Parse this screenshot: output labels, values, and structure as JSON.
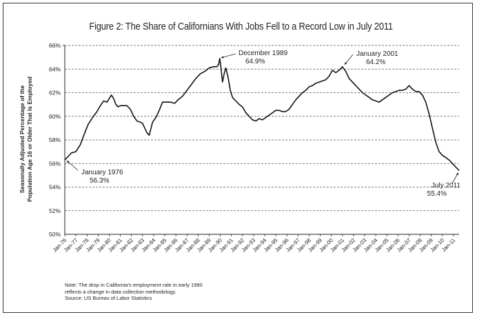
{
  "chart_data": {
    "type": "line",
    "title": "Figure 2: The Share of Californians With Jobs Fell to a Record Low in July 2011",
    "ylabel": [
      "Seasonally Adjusted Percentage of the",
      "Population Age 16 or Older That Is Employed"
    ],
    "xlabel": "",
    "ylim": [
      50,
      66
    ],
    "x_range": [
      1976.0,
      2011.5
    ],
    "y_ticks": [
      "50%",
      "52%",
      "54%",
      "56%",
      "58%",
      "60%",
      "62%",
      "64%",
      "66%"
    ],
    "x_ticks": [
      "Jan-76",
      "Jan-77",
      "Jan-78",
      "Jan-79",
      "Jan-80",
      "Jan-81",
      "Jan-82",
      "Jan-83",
      "Jan-84",
      "Jan-85",
      "Jan-86",
      "Jan-87",
      "Jan-88",
      "Jan-89",
      "Jan-90",
      "Jan-91",
      "Jan-92",
      "Jan-93",
      "Jan-94",
      "Jan-95",
      "Jan-96",
      "Jan-97",
      "Jan-98",
      "Jan-99",
      "Jan-00",
      "Jan-01",
      "Jan-02",
      "Jan-03",
      "Jan-04",
      "Jan-05",
      "Jan-06",
      "Jan-07",
      "Jan-08",
      "Jan-09",
      "Jan-10",
      "Jan-11"
    ],
    "grid": "horizontal dashed",
    "line_color": "#111111",
    "series": [
      {
        "x": [
          1976.0,
          1976.3,
          1976.6,
          1977.0,
          1977.4,
          1977.8,
          1978.1,
          1978.5,
          1978.9,
          1979.2,
          1979.5,
          1979.8,
          1980.0,
          1980.2,
          1980.4,
          1980.6,
          1980.8,
          1981.0,
          1981.3,
          1981.6,
          1981.9,
          1982.2,
          1982.5,
          1982.8,
          1983.0,
          1983.2,
          1983.4,
          1983.6,
          1983.9,
          1984.2,
          1984.5,
          1984.8,
          1985.1,
          1985.5,
          1985.9,
          1986.2,
          1986.6,
          1987.0,
          1987.4,
          1987.8,
          1988.2,
          1988.6,
          1989.0,
          1989.4,
          1989.7,
          1989.85,
          1989.95,
          1990.05,
          1990.2,
          1990.35,
          1990.5,
          1990.7,
          1990.9,
          1991.1,
          1991.4,
          1991.7,
          1992.0,
          1992.3,
          1992.6,
          1992.9,
          1993.2,
          1993.5,
          1993.8,
          1994.1,
          1994.4,
          1994.7,
          1995.0,
          1995.3,
          1995.6,
          1995.9,
          1996.2,
          1996.5,
          1996.8,
          1997.1,
          1997.4,
          1997.7,
          1998.0,
          1998.3,
          1998.6,
          1998.9,
          1999.2,
          1999.5,
          1999.8,
          2000.1,
          2000.4,
          2000.7,
          2001.0,
          2001.3,
          2001.6,
          2001.9,
          2002.2,
          2002.5,
          2002.8,
          2003.1,
          2003.4,
          2003.7,
          2004.0,
          2004.3,
          2004.6,
          2004.9,
          2005.2,
          2005.5,
          2005.8,
          2006.1,
          2006.4,
          2006.7,
          2007.0,
          2007.3,
          2007.6,
          2007.9,
          2008.2,
          2008.5,
          2008.8,
          2009.1,
          2009.4,
          2009.7,
          2010.0,
          2010.3,
          2010.6,
          2010.9,
          2011.2,
          2011.5
        ],
        "y": [
          56.3,
          56.6,
          56.9,
          57.0,
          57.6,
          58.6,
          59.3,
          59.9,
          60.4,
          60.9,
          61.3,
          61.2,
          61.5,
          61.8,
          61.5,
          61.0,
          60.8,
          60.9,
          60.9,
          60.9,
          60.6,
          60.0,
          59.6,
          59.5,
          59.4,
          59.0,
          58.6,
          58.4,
          59.5,
          59.9,
          60.5,
          61.2,
          61.2,
          61.2,
          61.1,
          61.4,
          61.7,
          62.2,
          62.7,
          63.2,
          63.6,
          63.8,
          64.1,
          64.2,
          64.2,
          64.4,
          64.9,
          64.2,
          62.9,
          63.6,
          64.1,
          63.3,
          62.2,
          61.6,
          61.3,
          61.0,
          60.8,
          60.3,
          60.0,
          59.7,
          59.6,
          59.8,
          59.7,
          59.9,
          60.1,
          60.3,
          60.5,
          60.5,
          60.4,
          60.4,
          60.6,
          61.0,
          61.4,
          61.7,
          62.0,
          62.2,
          62.5,
          62.6,
          62.8,
          62.9,
          63.0,
          63.1,
          63.4,
          63.9,
          63.7,
          63.9,
          64.2,
          63.8,
          63.2,
          62.9,
          62.6,
          62.3,
          62.0,
          61.8,
          61.6,
          61.4,
          61.3,
          61.2,
          61.4,
          61.6,
          61.8,
          62.0,
          62.1,
          62.2,
          62.2,
          62.3,
          62.6,
          62.3,
          62.1,
          62.1,
          61.8,
          61.2,
          60.2,
          59.0,
          57.8,
          57.0,
          56.7,
          56.5,
          56.3,
          56.0,
          55.7,
          55.4
        ]
      }
    ],
    "annotations": [
      {
        "label": "January 1976",
        "value": "56.3%"
      },
      {
        "label": "December 1989",
        "value": "64.9%"
      },
      {
        "label": "January 2001",
        "value": "64.2%"
      },
      {
        "label": "July 2011",
        "value": "55.4%"
      }
    ]
  },
  "note": [
    "Note: The drop in California's employment rate in early 1990",
    "reflects a change in data collection methodology.",
    "Source: US Bureau of Labor Statistics"
  ]
}
